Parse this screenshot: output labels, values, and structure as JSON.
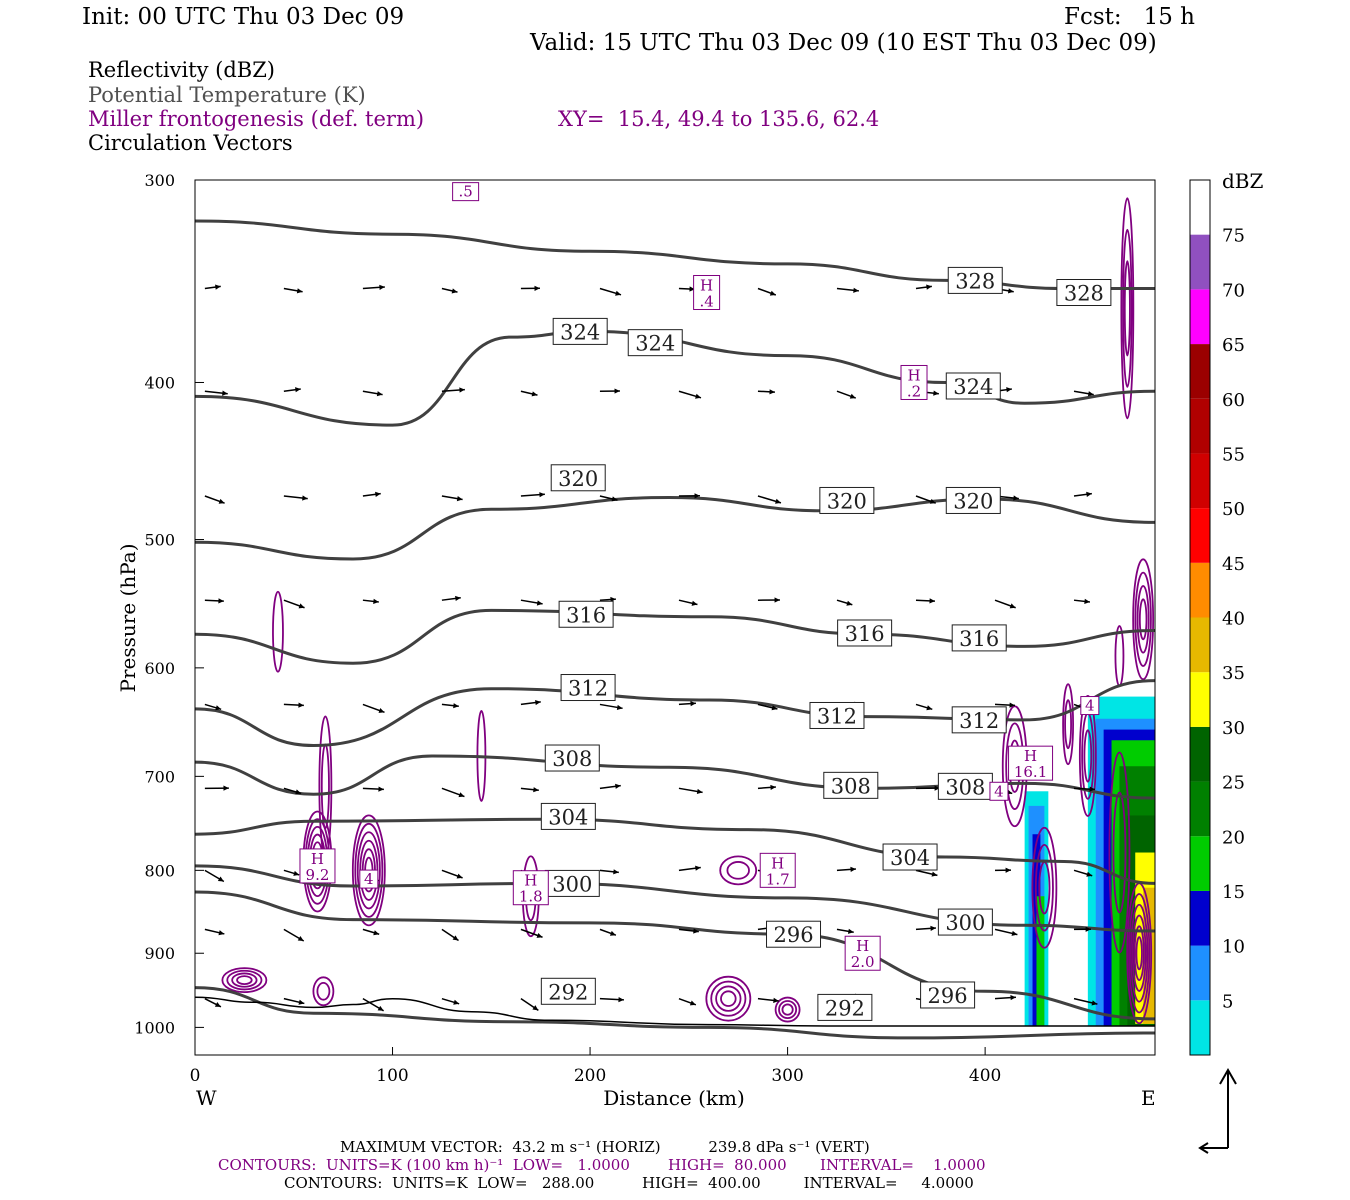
{
  "header": {
    "init": "Init: 00 UTC Thu 03 Dec 09",
    "fcst": "Fcst:   15 h",
    "valid": "Valid: 15 UTC Thu 03 Dec 09 (10 EST Thu 03 Dec 09)"
  },
  "legend": {
    "reflectivity": "Reflectivity (dBZ)",
    "theta": "Potential Temperature (K)",
    "frontogenesis": "Miller frontogenesis (def. term)",
    "xy": "XY=  15.4, 49.4 to 135.6, 62.4",
    "vectors": "Circulation Vectors"
  },
  "colors": {
    "theta": "#404040",
    "frontogenesis": "#800080",
    "vector": "#000000",
    "ground": "#000000"
  },
  "footer": {
    "max_vector": "MAXIMUM VECTOR:  43.2 m s⁻¹ (HORIZ)          239.8 dPa s⁻¹ (VERT)",
    "contours_fronto": "CONTOURS:  UNITS=K (100 km h)⁻¹  LOW=   1.0000        HIGH=  80.000       INTERVAL=    1.0000",
    "contours_theta": "CONTOURS:  UNITS=K  LOW=   288.00          HIGH=  400.00         INTERVAL=     4.0000"
  },
  "chart_data": {
    "type": "cross-section",
    "xlabel": "Distance (km)",
    "ylabel": "Pressure (hPa)",
    "xlim": [
      0,
      486
    ],
    "ylim": [
      1040,
      300
    ],
    "y_scale": "log",
    "x_ticks": [
      0,
      100,
      200,
      300,
      400
    ],
    "y_ticks": [
      300,
      400,
      500,
      600,
      700,
      800,
      900,
      1000
    ],
    "x_end_labels": {
      "left": "W",
      "right": "E"
    },
    "colorbar": {
      "title": "dBZ",
      "levels": [
        5,
        10,
        15,
        20,
        25,
        30,
        35,
        40,
        45,
        50,
        55,
        60,
        65,
        70,
        75
      ],
      "colors": [
        "#00e5e5",
        "#1e90ff",
        "#0000cd",
        "#00cc00",
        "#008000",
        "#006400",
        "#ffff00",
        "#e6b800",
        "#ff8c00",
        "#ff0000",
        "#d00000",
        "#b00000",
        "#9b0000",
        "#ff00ff",
        "#9050c0"
      ]
    },
    "theta_lines": [
      {
        "label": "328",
        "points": [
          [
            0,
            318
          ],
          [
            100,
            324
          ],
          [
            200,
            332
          ],
          [
            300,
            338
          ],
          [
            380,
            346
          ],
          [
            440,
            350
          ],
          [
            486,
            350
          ]
        ],
        "labels_at": [
          [
            395,
            346
          ],
          [
            450,
            352
          ]
        ]
      },
      {
        "label": "324",
        "points": [
          [
            0,
            408
          ],
          [
            100,
            425
          ],
          [
            160,
            375
          ],
          [
            200,
            372
          ],
          [
            300,
            385
          ],
          [
            380,
            400
          ],
          [
            420,
            412
          ],
          [
            486,
            405
          ]
        ],
        "labels_at": [
          [
            195,
            372
          ],
          [
            233,
            378
          ],
          [
            394,
            402
          ]
        ]
      },
      {
        "label": "320",
        "points": [
          [
            0,
            502
          ],
          [
            80,
            514
          ],
          [
            150,
            479
          ],
          [
            240,
            471
          ],
          [
            320,
            480
          ],
          [
            400,
            472
          ],
          [
            486,
            488
          ]
        ],
        "labels_at": [
          [
            194,
            458
          ],
          [
            330,
            473
          ],
          [
            394,
            473
          ]
        ]
      },
      {
        "label": "316",
        "points": [
          [
            0,
            572
          ],
          [
            80,
            596
          ],
          [
            150,
            553
          ],
          [
            260,
            558
          ],
          [
            340,
            572
          ],
          [
            420,
            582
          ],
          [
            486,
            569
          ]
        ],
        "labels_at": [
          [
            198,
            556
          ],
          [
            339,
            571
          ],
          [
            397,
            575
          ]
        ]
      },
      {
        "label": "312",
        "points": [
          [
            0,
            636
          ],
          [
            60,
            670
          ],
          [
            150,
            618
          ],
          [
            260,
            628
          ],
          [
            340,
            643
          ],
          [
            420,
            646
          ],
          [
            486,
            611
          ]
        ],
        "labels_at": [
          [
            199,
            617
          ],
          [
            325,
            642
          ],
          [
            397,
            646
          ]
        ]
      },
      {
        "label": "308",
        "points": [
          [
            0,
            686
          ],
          [
            60,
            718
          ],
          [
            120,
            680
          ],
          [
            240,
            691
          ],
          [
            340,
            712
          ],
          [
            420,
            707
          ],
          [
            486,
            722
          ]
        ],
        "labels_at": [
          [
            191,
            682
          ],
          [
            332,
            709
          ],
          [
            390,
            710
          ]
        ]
      },
      {
        "label": "304",
        "points": [
          [
            0,
            760
          ],
          [
            60,
            746
          ],
          [
            180,
            744
          ],
          [
            280,
            755
          ],
          [
            380,
            785
          ],
          [
            440,
            790
          ],
          [
            486,
            815
          ]
        ],
        "labels_at": [
          [
            189,
            741
          ],
          [
            362,
            785
          ]
        ]
      },
      {
        "label": "300",
        "points": [
          [
            0,
            795
          ],
          [
            80,
            818
          ],
          [
            180,
            815
          ],
          [
            300,
            832
          ],
          [
            420,
            865
          ],
          [
            486,
            872
          ]
        ],
        "labels_at": [
          [
            191,
            815
          ],
          [
            390,
            861
          ]
        ]
      },
      {
        "label": "296",
        "points": [
          [
            0,
            825
          ],
          [
            80,
            858
          ],
          [
            200,
            862
          ],
          [
            300,
            876
          ],
          [
            400,
            950
          ],
          [
            486,
            988
          ]
        ],
        "labels_at": [
          [
            303,
            876
          ],
          [
            381,
            955
          ]
        ]
      },
      {
        "label": "292",
        "points": [
          [
            0,
            945
          ],
          [
            60,
            980
          ],
          [
            160,
            992
          ],
          [
            260,
            1000
          ],
          [
            360,
            1015
          ],
          [
            486,
            1008
          ]
        ],
        "labels_at": [
          [
            189,
            950
          ],
          [
            329,
            972
          ]
        ]
      }
    ],
    "frontogenesis_maxima": [
      {
        "label": "H",
        "value": "9.2",
        "x": 62,
        "p": 795
      },
      {
        "label": "",
        "value": "4",
        "x": 88,
        "p": 810
      },
      {
        "label": "H",
        "value": "1.8",
        "x": 170,
        "p": 820
      },
      {
        "label": "H",
        "value": "1.7",
        "x": 295,
        "p": 800
      },
      {
        "label": "H",
        "value": "2.0",
        "x": 338,
        "p": 900
      },
      {
        "label": "H",
        "value": ".4",
        "x": 259,
        "p": 352
      },
      {
        "label": "H",
        "value": ".2",
        "x": 364,
        "p": 400
      },
      {
        "label": "H",
        "value": "16.1",
        "x": 423,
        "p": 687
      },
      {
        "label": "",
        "value": "4",
        "x": 407,
        "p": 715
      },
      {
        "label": "",
        "value": "4",
        "x": 453,
        "p": 633
      },
      {
        "label": "",
        "value": ".5",
        "x": 137,
        "p": 305
      }
    ],
    "vector_rows_p": [
      350,
      405,
      470,
      545,
      632,
      712,
      800,
      870,
      960
    ],
    "reflectivity_maximum_dbz": 40
  }
}
